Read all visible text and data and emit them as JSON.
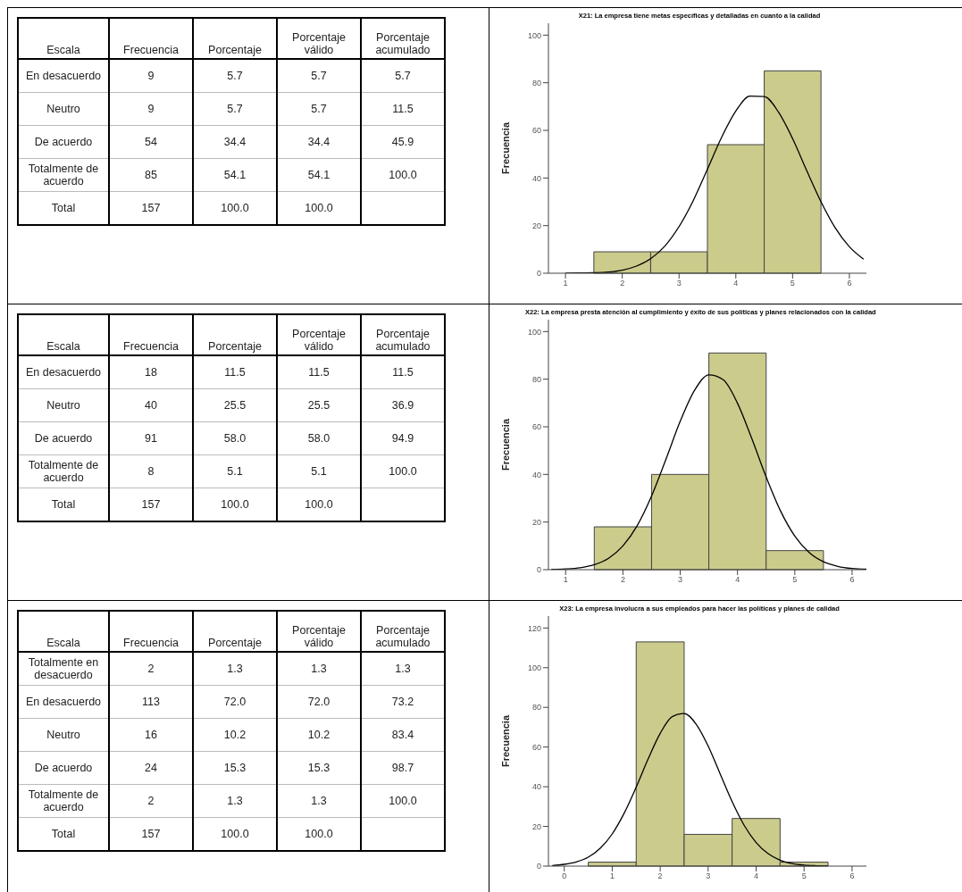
{
  "chart_data": [
    {
      "type": "heatmap",
      "ylabel": "Escala",
      "categories": [
        "Frecuencia",
        "Porcentaje",
        "Porcentaje válido",
        "Porcentaje acumulado"
      ],
      "y_categories": [
        "En desacuerdo",
        "Neutro",
        "De acuerdo",
        "Totalmente de acuerdo",
        "Total"
      ],
      "cells": [
        [
          9,
          5.7,
          5.7,
          5.7
        ],
        [
          9,
          5.7,
          5.7,
          11.5
        ],
        [
          54,
          34.4,
          34.4,
          45.9
        ],
        [
          85,
          54.1,
          54.1,
          100
        ],
        [
          157,
          100,
          100,
          null
        ]
      ],
      "cell_labels": [
        [
          "9",
          "5.7",
          "5.7",
          "5.7"
        ],
        [
          "9",
          "5.7",
          "5.7",
          "11.5"
        ],
        [
          "54",
          "34.4",
          "34.4",
          "45.9"
        ],
        [
          "85",
          "54.1",
          "54.1",
          "100.0"
        ],
        [
          "157",
          "100.0",
          "100.0",
          null
        ]
      ]
    },
    {
      "type": "histogram",
      "title": "X21: La empresa tiene metas específicas y detalladas en cuanto a la calidad",
      "ylabel": "Frecuencia",
      "color": "#cbcb8c",
      "bins": [
        1.5,
        2.5,
        3.5,
        4.5,
        5.5
      ],
      "values": [
        9,
        9,
        54,
        85
      ],
      "xlim": [
        0.7,
        6.3
      ],
      "xticks": [
        1,
        2,
        3,
        4,
        5,
        6
      ],
      "ylim": [
        0,
        105
      ],
      "yticks": [
        0,
        20,
        40,
        60,
        80,
        100
      ],
      "series": [
        {
          "type": "line",
          "color": "#000000",
          "x": [
            1,
            1.25,
            1.5,
            1.75,
            2,
            2.25,
            2.5,
            2.75,
            3,
            3.25,
            3.5,
            3.75,
            4,
            4.25,
            4.5,
            4.75,
            5,
            5.25,
            5.5,
            5.75,
            6,
            6.25
          ],
          "values": [
            0,
            0.1,
            0.2,
            0.5,
            1.3,
            3,
            6.1,
            11.4,
            19.6,
            30.5,
            43.7,
            57.1,
            68.1,
            74.4,
            74.2,
            67.7,
            56.5,
            43,
            30,
            19.1,
            11.1,
            5.9
          ]
        }
      ]
    },
    {
      "type": "heatmap",
      "ylabel": "Escala",
      "categories": [
        "Frecuencia",
        "Porcentaje",
        "Porcentaje válido",
        "Porcentaje acumulado"
      ],
      "y_categories": [
        "En desacuerdo",
        "Neutro",
        "De acuerdo",
        "Totalmente de acuerdo",
        "Total"
      ],
      "cells": [
        [
          18,
          11.5,
          11.5,
          11.5
        ],
        [
          40,
          25.5,
          25.5,
          36.9
        ],
        [
          91,
          58,
          58,
          94.9
        ],
        [
          8,
          5.1,
          5.1,
          100
        ],
        [
          157,
          100,
          100,
          null
        ]
      ],
      "cell_labels": [
        [
          "18",
          "11.5",
          "11.5",
          "11.5"
        ],
        [
          "40",
          "25.5",
          "25.5",
          "36.9"
        ],
        [
          "91",
          "58.0",
          "58.0",
          "94.9"
        ],
        [
          "8",
          "5.1",
          "5.1",
          "100.0"
        ],
        [
          "157",
          "100.0",
          "100.0",
          null
        ]
      ]
    },
    {
      "type": "histogram",
      "title": "X22: La empresa presta atención al cumplimiento y éxito de sus políticas y planes relacionados con la calidad",
      "ylabel": "Frecuencia",
      "color": "#cbcb8c",
      "bins": [
        1.5,
        2.5,
        3.5,
        4.5,
        5.5
      ],
      "values": [
        18,
        40,
        91,
        8
      ],
      "xlim": [
        0.7,
        6.25
      ],
      "xticks": [
        1,
        2,
        3,
        4,
        5,
        6
      ],
      "ylim": [
        0,
        105
      ],
      "yticks": [
        0,
        20,
        40,
        60,
        80,
        100
      ],
      "series": [
        {
          "type": "line",
          "color": "#000000",
          "x": [
            0.75,
            1,
            1.25,
            1.5,
            1.75,
            2,
            2.25,
            2.5,
            2.75,
            3,
            3.25,
            3.5,
            3.75,
            4,
            4.25,
            4.5,
            4.75,
            5,
            5.25,
            5.5,
            5.75,
            6,
            6.25
          ],
          "values": [
            0.1,
            0.3,
            0.8,
            2.1,
            4.8,
            10,
            18.5,
            30.9,
            46.3,
            62.3,
            75.3,
            81.8,
            79.8,
            69.9,
            55,
            38.9,
            24.7,
            14.1,
            7.2,
            3.3,
            1.4,
            0.5,
            0.2
          ]
        }
      ]
    },
    {
      "type": "heatmap",
      "ylabel": "Escala",
      "categories": [
        "Frecuencia",
        "Porcentaje",
        "Porcentaje válido",
        "Porcentaje acumulado"
      ],
      "y_categories": [
        "Totalmente en desacuerdo",
        "En desacuerdo",
        "Neutro",
        "De acuerdo",
        "Totalmente de acuerdo",
        "Total"
      ],
      "cells": [
        [
          2,
          1.3,
          1.3,
          1.3
        ],
        [
          113,
          72,
          72,
          73.2
        ],
        [
          16,
          10.2,
          10.2,
          83.4
        ],
        [
          24,
          15.3,
          15.3,
          98.7
        ],
        [
          2,
          1.3,
          1.3,
          100
        ],
        [
          157,
          100,
          100,
          null
        ]
      ],
      "cell_labels": [
        [
          "2",
          "1.3",
          "1.3",
          "1.3"
        ],
        [
          "113",
          "72.0",
          "72.0",
          "73.2"
        ],
        [
          "16",
          "10.2",
          "10.2",
          "83.4"
        ],
        [
          "24",
          "15.3",
          "15.3",
          "98.7"
        ],
        [
          "2",
          "1.3",
          "1.3",
          "100.0"
        ],
        [
          "157",
          "100.0",
          "100.0",
          null
        ]
      ]
    },
    {
      "type": "histogram",
      "title": "X23: La empresa involucra a sus empleados para hacer las políticas y planes de calidad",
      "ylabel": "Frecuencia",
      "color": "#cbcb8c",
      "bins": [
        0.5,
        1.5,
        2.5,
        3.5,
        4.5,
        5.5
      ],
      "values": [
        2,
        113,
        16,
        24,
        2
      ],
      "xlim": [
        -0.33,
        6.3
      ],
      "xticks": [
        0,
        1,
        2,
        3,
        4,
        5,
        6
      ],
      "ylim": [
        0,
        126
      ],
      "yticks": [
        0,
        20,
        40,
        60,
        80,
        100,
        120
      ],
      "series": [
        {
          "type": "line",
          "color": "#000000",
          "x": [
            -0.25,
            0,
            0.25,
            0.5,
            0.75,
            1,
            1.25,
            1.5,
            1.75,
            2,
            2.25,
            2.5,
            2.75,
            3,
            3.25,
            3.5,
            3.75,
            4,
            4.25,
            4.5,
            4.75,
            5,
            5.25,
            5.5
          ],
          "values": [
            0.3,
            0.9,
            2.1,
            4.5,
            9,
            16.2,
            26.7,
            39.8,
            54.1,
            66.9,
            75.3,
            76.9,
            71.5,
            60.5,
            46.5,
            32.5,
            20.6,
            11.9,
            6.3,
            3,
            1.3,
            0.5,
            0.2,
            0.1
          ]
        }
      ]
    }
  ]
}
